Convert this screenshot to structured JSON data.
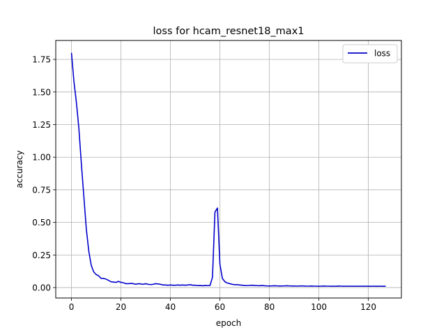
{
  "chart_data": {
    "type": "line",
    "title": "loss for hcam_resnet18_max1",
    "xlabel": "epoch",
    "ylabel": "accuracy",
    "xlim": [
      -6.35,
      133.35
    ],
    "ylim": [
      -0.08,
      1.895
    ],
    "xticks": [
      0,
      20,
      40,
      60,
      80,
      100,
      120
    ],
    "yticks": [
      0.0,
      0.25,
      0.5,
      0.75,
      1.0,
      1.25,
      1.5,
      1.75
    ],
    "xtick_labels": [
      "0",
      "20",
      "40",
      "60",
      "80",
      "100",
      "120"
    ],
    "ytick_labels": [
      "0.00",
      "0.25",
      "0.50",
      "0.75",
      "1.00",
      "1.25",
      "1.50",
      "1.75"
    ],
    "grid": true,
    "legend_position": "top-right",
    "series": [
      {
        "name": "loss",
        "color": "#0000cc",
        "x": [
          0,
          1,
          2,
          3,
          4,
          5,
          6,
          7,
          8,
          9,
          10,
          11,
          12,
          13,
          14,
          15,
          16,
          17,
          18,
          19,
          20,
          21,
          22,
          23,
          24,
          25,
          26,
          27,
          28,
          29,
          30,
          31,
          32,
          33,
          34,
          35,
          36,
          37,
          38,
          39,
          40,
          41,
          42,
          43,
          44,
          45,
          46,
          47,
          48,
          49,
          50,
          51,
          52,
          53,
          54,
          55,
          56,
          57,
          58,
          59,
          60,
          61,
          62,
          63,
          64,
          65,
          66,
          67,
          68,
          69,
          70,
          71,
          72,
          73,
          74,
          75,
          76,
          77,
          78,
          79,
          80,
          81,
          82,
          83,
          84,
          85,
          86,
          87,
          88,
          89,
          90,
          91,
          92,
          93,
          94,
          95,
          96,
          97,
          98,
          99,
          100,
          101,
          102,
          103,
          104,
          105,
          106,
          107,
          108,
          109,
          110,
          111,
          112,
          113,
          114,
          115,
          116,
          117,
          118,
          119,
          120,
          121,
          122,
          123,
          124,
          125,
          126,
          127
        ],
        "values": [
          1.8,
          1.58,
          1.42,
          1.22,
          0.95,
          0.7,
          0.45,
          0.28,
          0.17,
          0.12,
          0.1,
          0.09,
          0.07,
          0.07,
          0.065,
          0.055,
          0.045,
          0.042,
          0.04,
          0.048,
          0.04,
          0.037,
          0.03,
          0.03,
          0.032,
          0.03,
          0.025,
          0.03,
          0.028,
          0.025,
          0.03,
          0.025,
          0.023,
          0.025,
          0.03,
          0.028,
          0.025,
          0.02,
          0.02,
          0.018,
          0.02,
          0.018,
          0.018,
          0.02,
          0.018,
          0.02,
          0.018,
          0.02,
          0.022,
          0.018,
          0.018,
          0.015,
          0.016,
          0.014,
          0.016,
          0.015,
          0.016,
          0.08,
          0.58,
          0.61,
          0.18,
          0.07,
          0.045,
          0.035,
          0.03,
          0.025,
          0.022,
          0.022,
          0.02,
          0.018,
          0.016,
          0.015,
          0.017,
          0.018,
          0.016,
          0.015,
          0.014,
          0.016,
          0.014,
          0.013,
          0.012,
          0.013,
          0.014,
          0.013,
          0.012,
          0.012,
          0.013,
          0.014,
          0.013,
          0.012,
          0.012,
          0.011,
          0.012,
          0.013,
          0.012,
          0.011,
          0.011,
          0.012,
          0.011,
          0.011,
          0.01,
          0.011,
          0.012,
          0.011,
          0.011,
          0.01,
          0.011,
          0.01,
          0.012,
          0.011,
          0.01,
          0.011,
          0.01,
          0.011,
          0.01,
          0.011,
          0.01,
          0.011,
          0.01,
          0.011,
          0.01,
          0.01,
          0.011,
          0.01,
          0.01,
          0.011,
          0.01,
          0.01
        ]
      }
    ]
  }
}
